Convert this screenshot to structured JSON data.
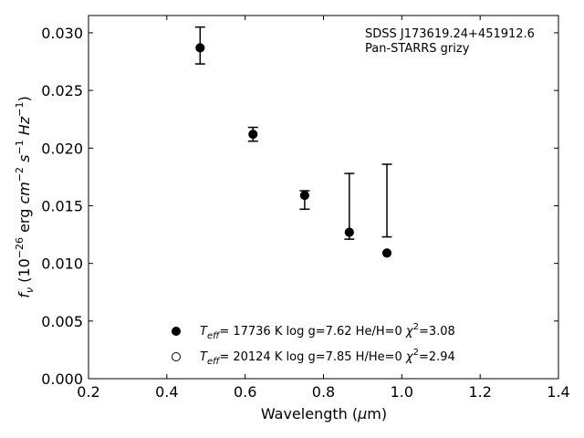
{
  "chart_data": {
    "type": "scatter",
    "title": "",
    "annotation_lines": [
      "SDSS J173619.24+451912.6",
      "Pan-STARRS grizy"
    ],
    "xlabel_parts": {
      "pre": "Wavelength (",
      "sym": "μ",
      "post": "m)"
    },
    "ylabel_parts": {
      "f": "f",
      "nu": "ν",
      "open": " (10",
      "exp1": "−26",
      "erg": " erg ",
      "cm": "cm",
      "exp2": "−2",
      "s": "s",
      "exp3": "−1",
      "hz": "Hz",
      "exp4": "−1",
      "close": ")"
    },
    "xlim": [
      0.2,
      1.4
    ],
    "ylim": [
      0.0,
      0.0315
    ],
    "xticks": [
      0.2,
      0.4,
      0.6,
      0.8,
      1.0,
      1.2,
      1.4
    ],
    "xtick_labels": [
      "0.2",
      "0.4",
      "0.6",
      "0.8",
      "1.0",
      "1.2",
      "1.4"
    ],
    "yticks": [
      0.0,
      0.005,
      0.01,
      0.015,
      0.02,
      0.025,
      0.03
    ],
    "ytick_labels": [
      "0.000",
      "0.005",
      "0.010",
      "0.015",
      "0.020",
      "0.025",
      "0.030"
    ],
    "grid": false,
    "observed": {
      "x": [
        0.485,
        0.62,
        0.752,
        0.866,
        0.962
      ],
      "lower": [
        0.0273,
        0.0206,
        0.0147,
        0.0121,
        0.0123
      ],
      "upper": [
        0.0305,
        0.0218,
        0.0163,
        0.0178,
        0.0186
      ]
    },
    "models": [
      {
        "marker": "filled",
        "label": {
          "t": "T",
          "eff": "eff",
          "rest": "= 17736 K  log g=7.62  He/H=0  ",
          "chi": "χ",
          "two": "2",
          "val": "=3.08"
        },
        "x": [
          0.485,
          0.62,
          0.752,
          0.866,
          0.962
        ],
        "y": [
          0.0287,
          0.0212,
          0.0159,
          0.0127,
          0.0109
        ]
      },
      {
        "marker": "open",
        "label": {
          "t": "T",
          "eff": "eff",
          "rest": "= 20124 K  log g=7.85  H/He=0  ",
          "chi": "χ",
          "two": "2",
          "val": "=2.94"
        },
        "x": [
          0.485,
          0.62,
          0.752,
          0.866,
          0.962
        ],
        "y": [
          0.0287,
          0.0212,
          0.0159,
          0.0127,
          0.0109
        ]
      }
    ],
    "legend_position": "lower-center",
    "annotation_position": "top-right"
  }
}
